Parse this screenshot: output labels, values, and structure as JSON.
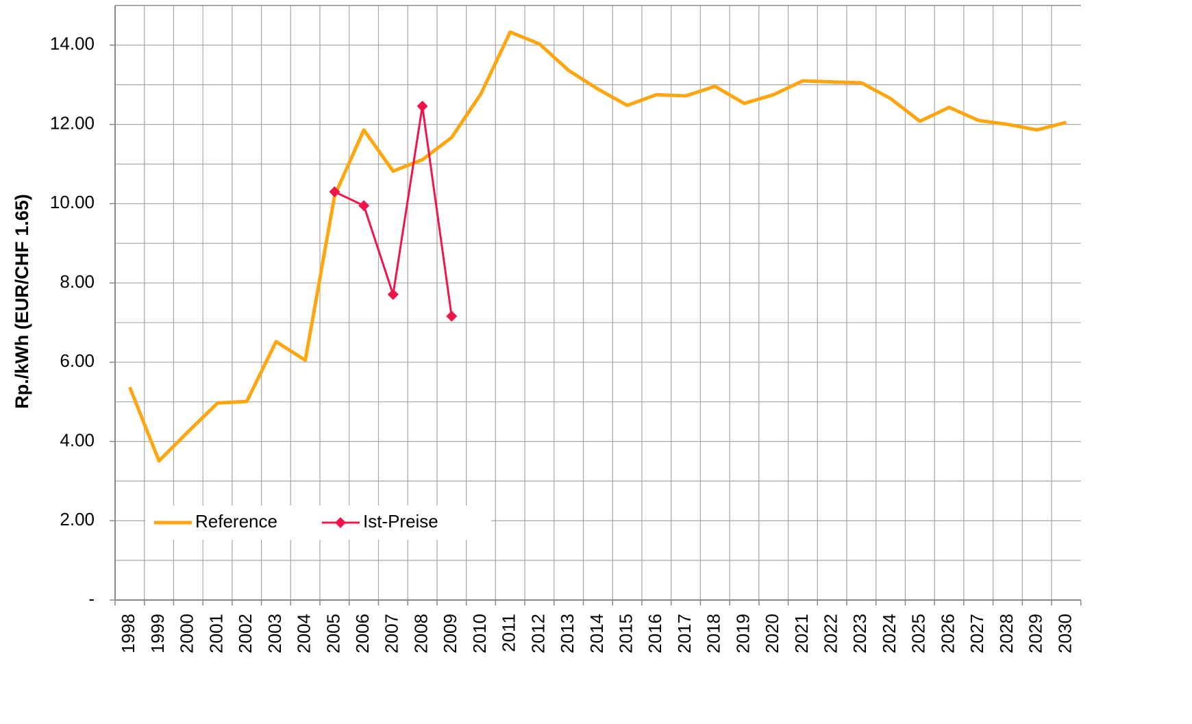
{
  "chart_data": {
    "type": "line",
    "y_label": "Rp./kWh (EUR/CHF 1.65)",
    "categories": [
      "1998",
      "1999",
      "2000",
      "2001",
      "2002",
      "2003",
      "2004",
      "2005",
      "2006",
      "2007",
      "2008",
      "2009",
      "2010",
      "2011",
      "2012",
      "2013",
      "2014",
      "2015",
      "2016",
      "2017",
      "2018",
      "2019",
      "2020",
      "2021",
      "2022",
      "2023",
      "2024",
      "2025",
      "2026",
      "2027",
      "2028",
      "2029",
      "2030"
    ],
    "series": [
      {
        "name": "Reference",
        "color": "#ffa50f",
        "marker": "none",
        "values": [
          5.37,
          3.51,
          4.25,
          4.97,
          5.01,
          6.52,
          6.05,
          10.2,
          11.86,
          10.82,
          11.11,
          11.67,
          12.77,
          14.33,
          14.03,
          13.36,
          12.89,
          12.48,
          12.75,
          12.72,
          12.96,
          12.53,
          12.75,
          13.1,
          13.07,
          13.05,
          12.65,
          12.08,
          12.43,
          12.1,
          12.0,
          11.86,
          12.05
        ]
      },
      {
        "name": "Ist-Preise",
        "color": "#f0144b",
        "marker": "diamond",
        "values": [
          null,
          null,
          null,
          null,
          null,
          null,
          null,
          10.3,
          9.95,
          7.71,
          12.46,
          7.16,
          null,
          null,
          null,
          null,
          null,
          null,
          null,
          null,
          null,
          null,
          null,
          null,
          null,
          null,
          null,
          null,
          null,
          null,
          null,
          null,
          null
        ]
      }
    ],
    "ylim": [
      0,
      15
    ],
    "yticks": [
      {
        "value": 0,
        "label": "-"
      },
      {
        "value": 2,
        "label": "2.00"
      },
      {
        "value": 4,
        "label": "4.00"
      },
      {
        "value": 6,
        "label": "6.00"
      },
      {
        "value": 8,
        "label": "8.00"
      },
      {
        "value": 10,
        "label": "10.00"
      },
      {
        "value": 12,
        "label": "12.00"
      },
      {
        "value": 14,
        "label": "14.00"
      }
    ],
    "minor_yticks": [
      1,
      3,
      5,
      7,
      9,
      11,
      13
    ],
    "grid": true,
    "legend": "lower left"
  }
}
